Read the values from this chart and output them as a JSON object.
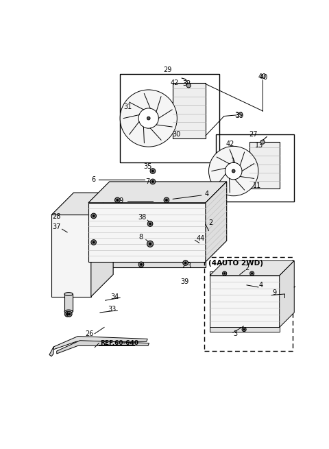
{
  "bg_color": "#ffffff",
  "line_color": "#000000",
  "gray_color": "#888888",
  "light_gray": "#aaaaaa"
}
